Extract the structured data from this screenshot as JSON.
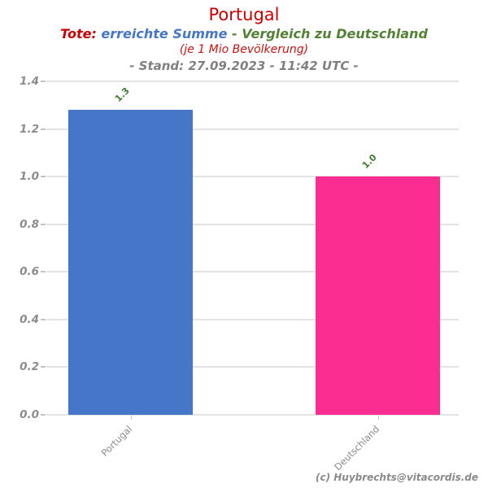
{
  "header": {
    "title": "Portugal",
    "subtitle": {
      "part1": "Tote:",
      "part2": "erreichte Summe",
      "part3": "- Vergleich zu Deutschland"
    },
    "unit_note": "(je 1 Mio Bevölkerung)",
    "stand_line": "- Stand: 27.09.2023 - 11:42 UTC -"
  },
  "footer": {
    "copyright": "(c) Huybrechts@vitacordis.de"
  },
  "colors": {
    "title_red": "#cc0000",
    "subtitle_blue": "#4676c8",
    "subtitle_green": "#548235",
    "axis_gray": "#8c8c8c",
    "value_label_green": "#3f8030",
    "bar_portugal_blue": "#4676c8",
    "bar_deutschland_pink": "#fc2d90"
  },
  "chart_data": {
    "type": "bar",
    "title": "Portugal",
    "subtitle": "Tote: erreichte Summe - Vergleich zu Deutschland (je 1 Mio Bevölkerung)",
    "stand": "- Stand: 27.09.2023 - 11:42 UTC -",
    "categories": [
      "Portugal",
      "Deutschland"
    ],
    "values": [
      1.28,
      1.0
    ],
    "bar_labels": [
      "1.3",
      "1.0"
    ],
    "bar_colors": [
      "#4676c8",
      "#fc2d90"
    ],
    "xlabel": "",
    "ylabel": "",
    "ylim": [
      0,
      1.4
    ],
    "yticks": [
      0.0,
      0.2,
      0.4,
      0.6,
      0.8,
      1.0,
      1.2,
      1.4
    ],
    "ytick_labels": [
      "0.0",
      "0.2",
      "0.4",
      "0.6",
      "0.8",
      "1.0",
      "1.2",
      "1.4"
    ],
    "grid": true,
    "legend": false
  }
}
